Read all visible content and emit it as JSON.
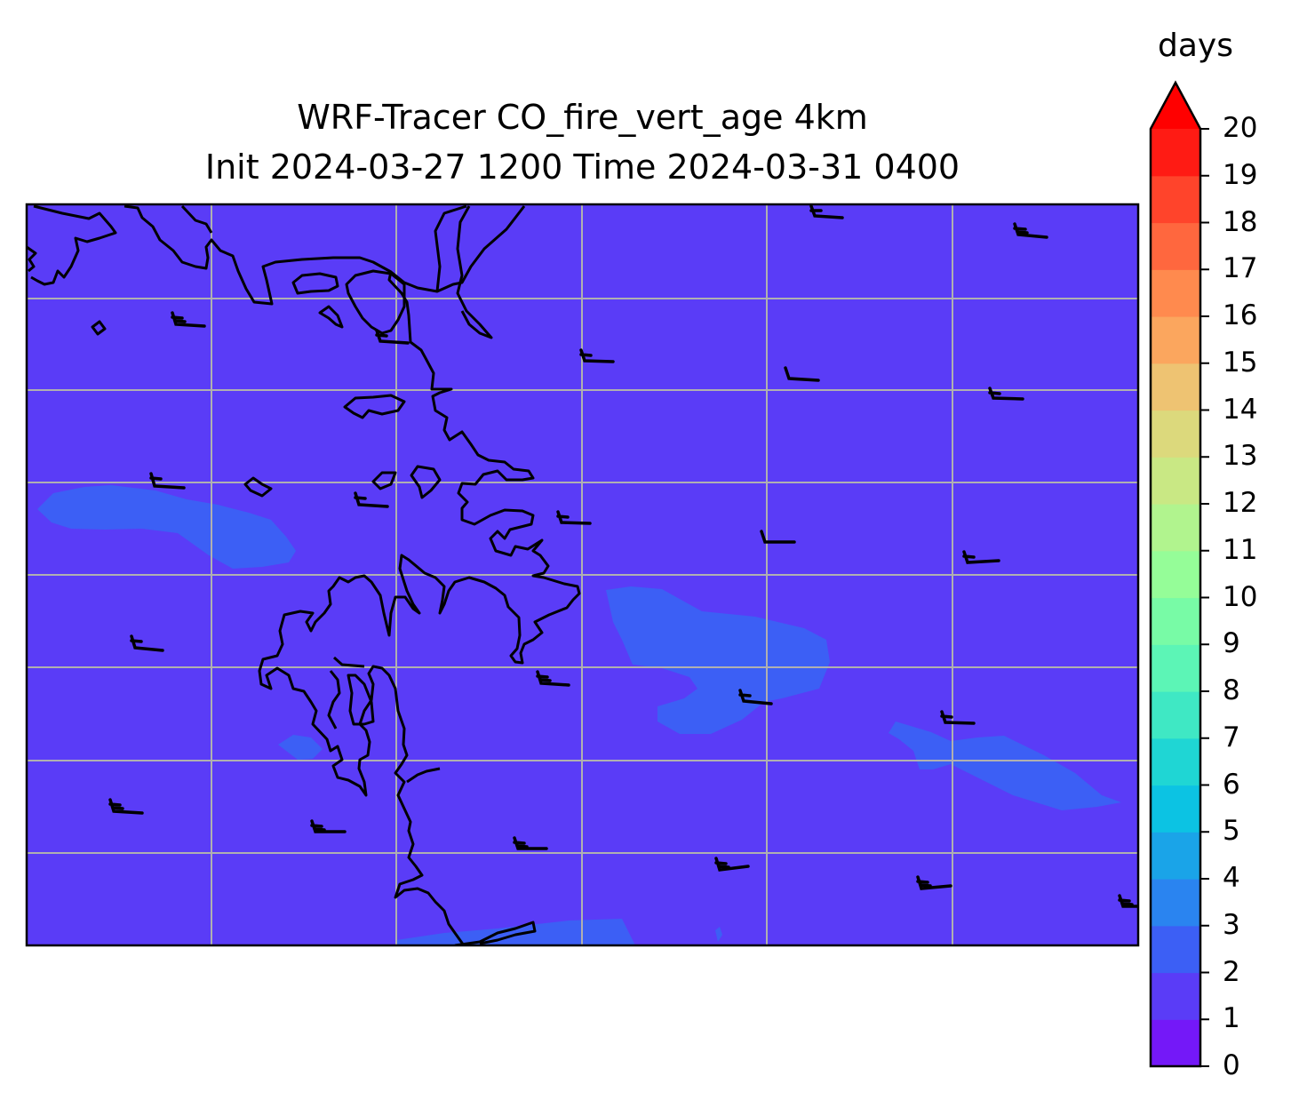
{
  "title": {
    "line1": "WRF-Tracer CO_fire_vert_age 4km",
    "line2": "Init 2024-03-27 1200 Time 2024-03-31 0400"
  },
  "colorbar": {
    "unit": "days",
    "ticks": [
      "0",
      "1",
      "2",
      "3",
      "4",
      "5",
      "6",
      "7",
      "8",
      "9",
      "10",
      "11",
      "12",
      "13",
      "14",
      "15",
      "16",
      "17",
      "18",
      "19",
      "20"
    ],
    "levels": [
      0,
      1,
      2,
      3,
      4,
      5,
      6,
      7,
      8,
      9,
      10,
      11,
      12,
      13,
      14,
      15,
      16,
      17,
      18,
      19,
      20
    ],
    "extend": "max",
    "colors": [
      "#7418f8",
      "#5a3cf7",
      "#3c5ff5",
      "#2a84f0",
      "#1aa4e8",
      "#0cc3e3",
      "#1fd6d4",
      "#3fe8c4",
      "#5cf5b6",
      "#78fba6",
      "#95fd98",
      "#b1f48e",
      "#c9e884",
      "#dcd97c",
      "#eec372",
      "#fba65e",
      "#ff8a4e",
      "#ff673e",
      "#ff442b",
      "#ff1b14"
    ],
    "over_color": "#ff0000"
  },
  "map": {
    "background_color": "#5a3cf7",
    "patch_color": "#3c5ff5",
    "patch_level": "1-2 days",
    "coastline_color": "#000000",
    "gridline_color": "#b0b0b0"
  }
}
